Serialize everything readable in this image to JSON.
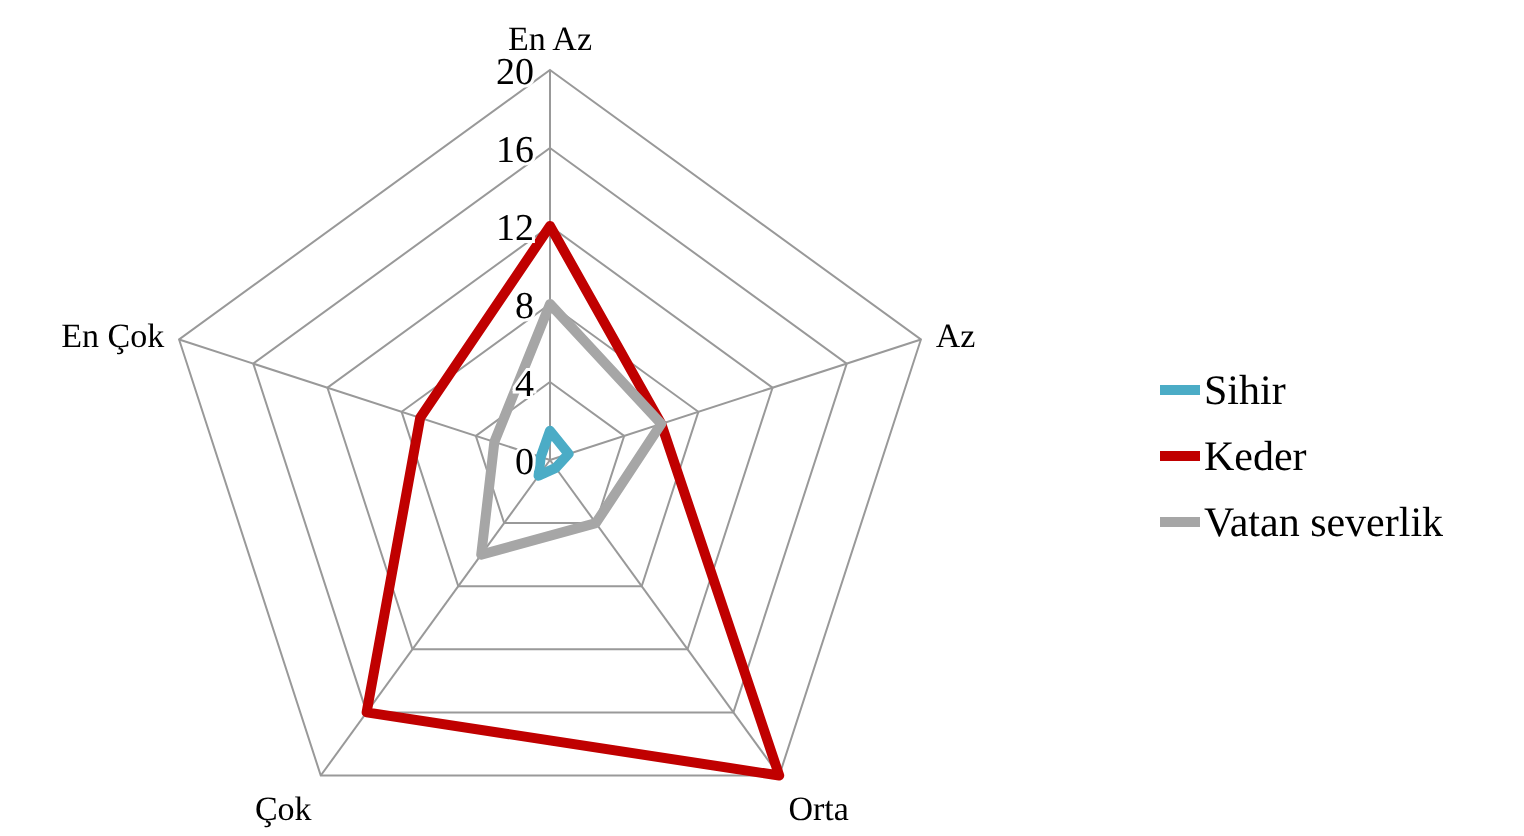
{
  "chart_data": {
    "type": "radar",
    "categories": [
      "En Az",
      "Az",
      "Orta",
      "Çok",
      "En Çok"
    ],
    "ylim": [
      0,
      20
    ],
    "yticks": [
      0,
      4,
      8,
      12,
      16,
      20
    ],
    "legend": "right",
    "series": [
      {
        "name": "Sihir",
        "color": "#4bacc6",
        "values": [
          1.5,
          1,
          0.5,
          1,
          0.5
        ]
      },
      {
        "name": "Keder",
        "color": "#c00000",
        "values": [
          12,
          6,
          20,
          16,
          7
        ]
      },
      {
        "name": "Vatan severlik",
        "color": "#a6a6a6",
        "values": [
          8,
          6,
          4,
          6,
          3
        ]
      }
    ]
  }
}
